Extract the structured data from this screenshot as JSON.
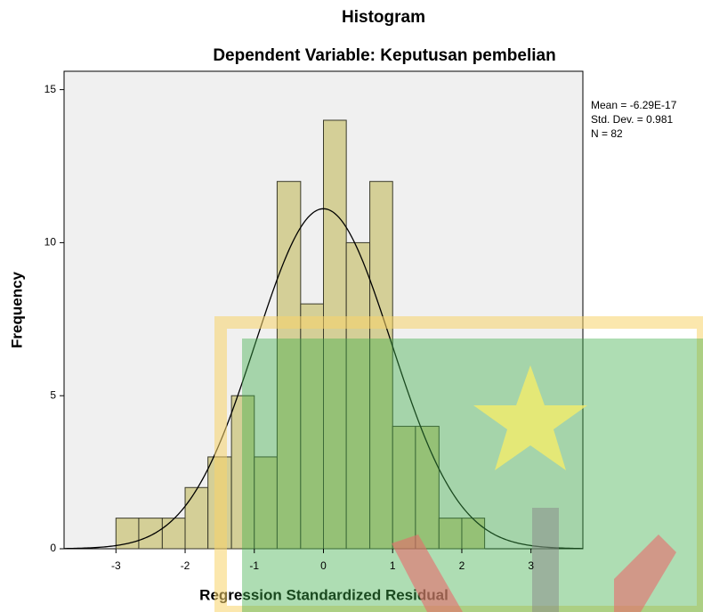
{
  "chart_data": {
    "type": "histogram",
    "title": "Histogram",
    "subtitle": "Dependent Variable: Keputusan pembelian",
    "x_label": "Regression Standardized Residual",
    "y_label": "Frequency",
    "bins": [
      -3,
      -2.67,
      -2.33,
      -2,
      -1.67,
      -1.33,
      -1,
      -0.67,
      -0.33,
      0,
      0.33,
      0.67,
      1,
      1.33,
      1.67,
      2,
      2.33
    ],
    "values": [
      1,
      1,
      1,
      2,
      3,
      5,
      3,
      12,
      8,
      14,
      10,
      12,
      4,
      4,
      1,
      1
    ],
    "color": "#d4cf97",
    "xlim": [
      -3.75,
      3.75
    ],
    "ylim": [
      0,
      15.6
    ],
    "xticks": [
      -3,
      -2,
      -1,
      0,
      1,
      2,
      3
    ],
    "yticks": [
      0,
      5,
      10,
      15
    ],
    "annotations": [
      "Mean = -6.29E-17",
      "Std. Dev. = 0.981",
      "N = 82"
    ],
    "normal_curve": {
      "mean": -6.29e-17,
      "std_dev": 0.981,
      "n": 82
    }
  }
}
